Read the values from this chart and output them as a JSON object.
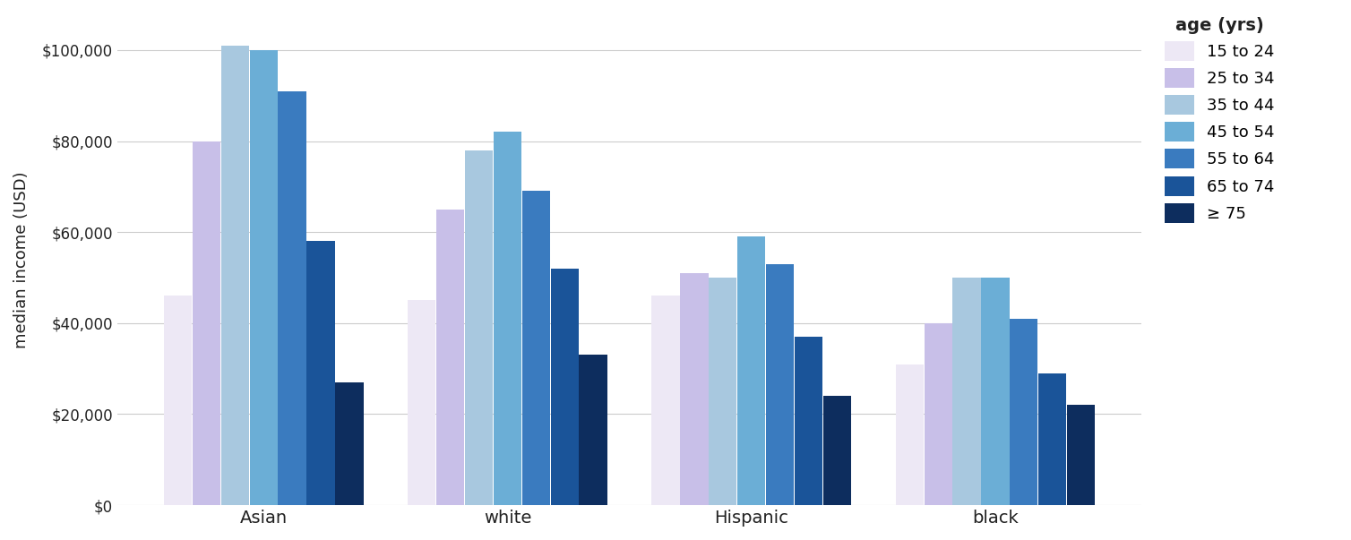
{
  "categories": [
    "Asian",
    "white",
    "Hispanic",
    "black"
  ],
  "age_groups": [
    "15 to 24",
    "25 to 34",
    "35 to 44",
    "45 to 54",
    "55 to 64",
    "65 to 74",
    "≥ 75"
  ],
  "colors": [
    "#ede8f5",
    "#c8bfe8",
    "#a8c8df",
    "#6baed6",
    "#3a7bbf",
    "#1a5499",
    "#0d2d5e"
  ],
  "values": {
    "Asian": [
      46000,
      80000,
      101000,
      100000,
      91000,
      58000,
      27000
    ],
    "white": [
      45000,
      65000,
      78000,
      82000,
      69000,
      52000,
      33000
    ],
    "Hispanic": [
      46000,
      51000,
      50000,
      59000,
      53000,
      37000,
      24000
    ],
    "black": [
      31000,
      40000,
      50000,
      50000,
      41000,
      29000,
      22000
    ]
  },
  "ylabel": "median income (USD)",
  "legend_title": "age (yrs)",
  "ylim": [
    0,
    108000
  ],
  "yticks": [
    0,
    20000,
    40000,
    60000,
    80000,
    100000
  ],
  "ytick_labels": [
    "$0",
    "$20,000",
    "$40,000",
    "$60,000",
    "$80,000",
    "$100,000"
  ],
  "background_color": "#ffffff",
  "grid_color": "#cccccc"
}
